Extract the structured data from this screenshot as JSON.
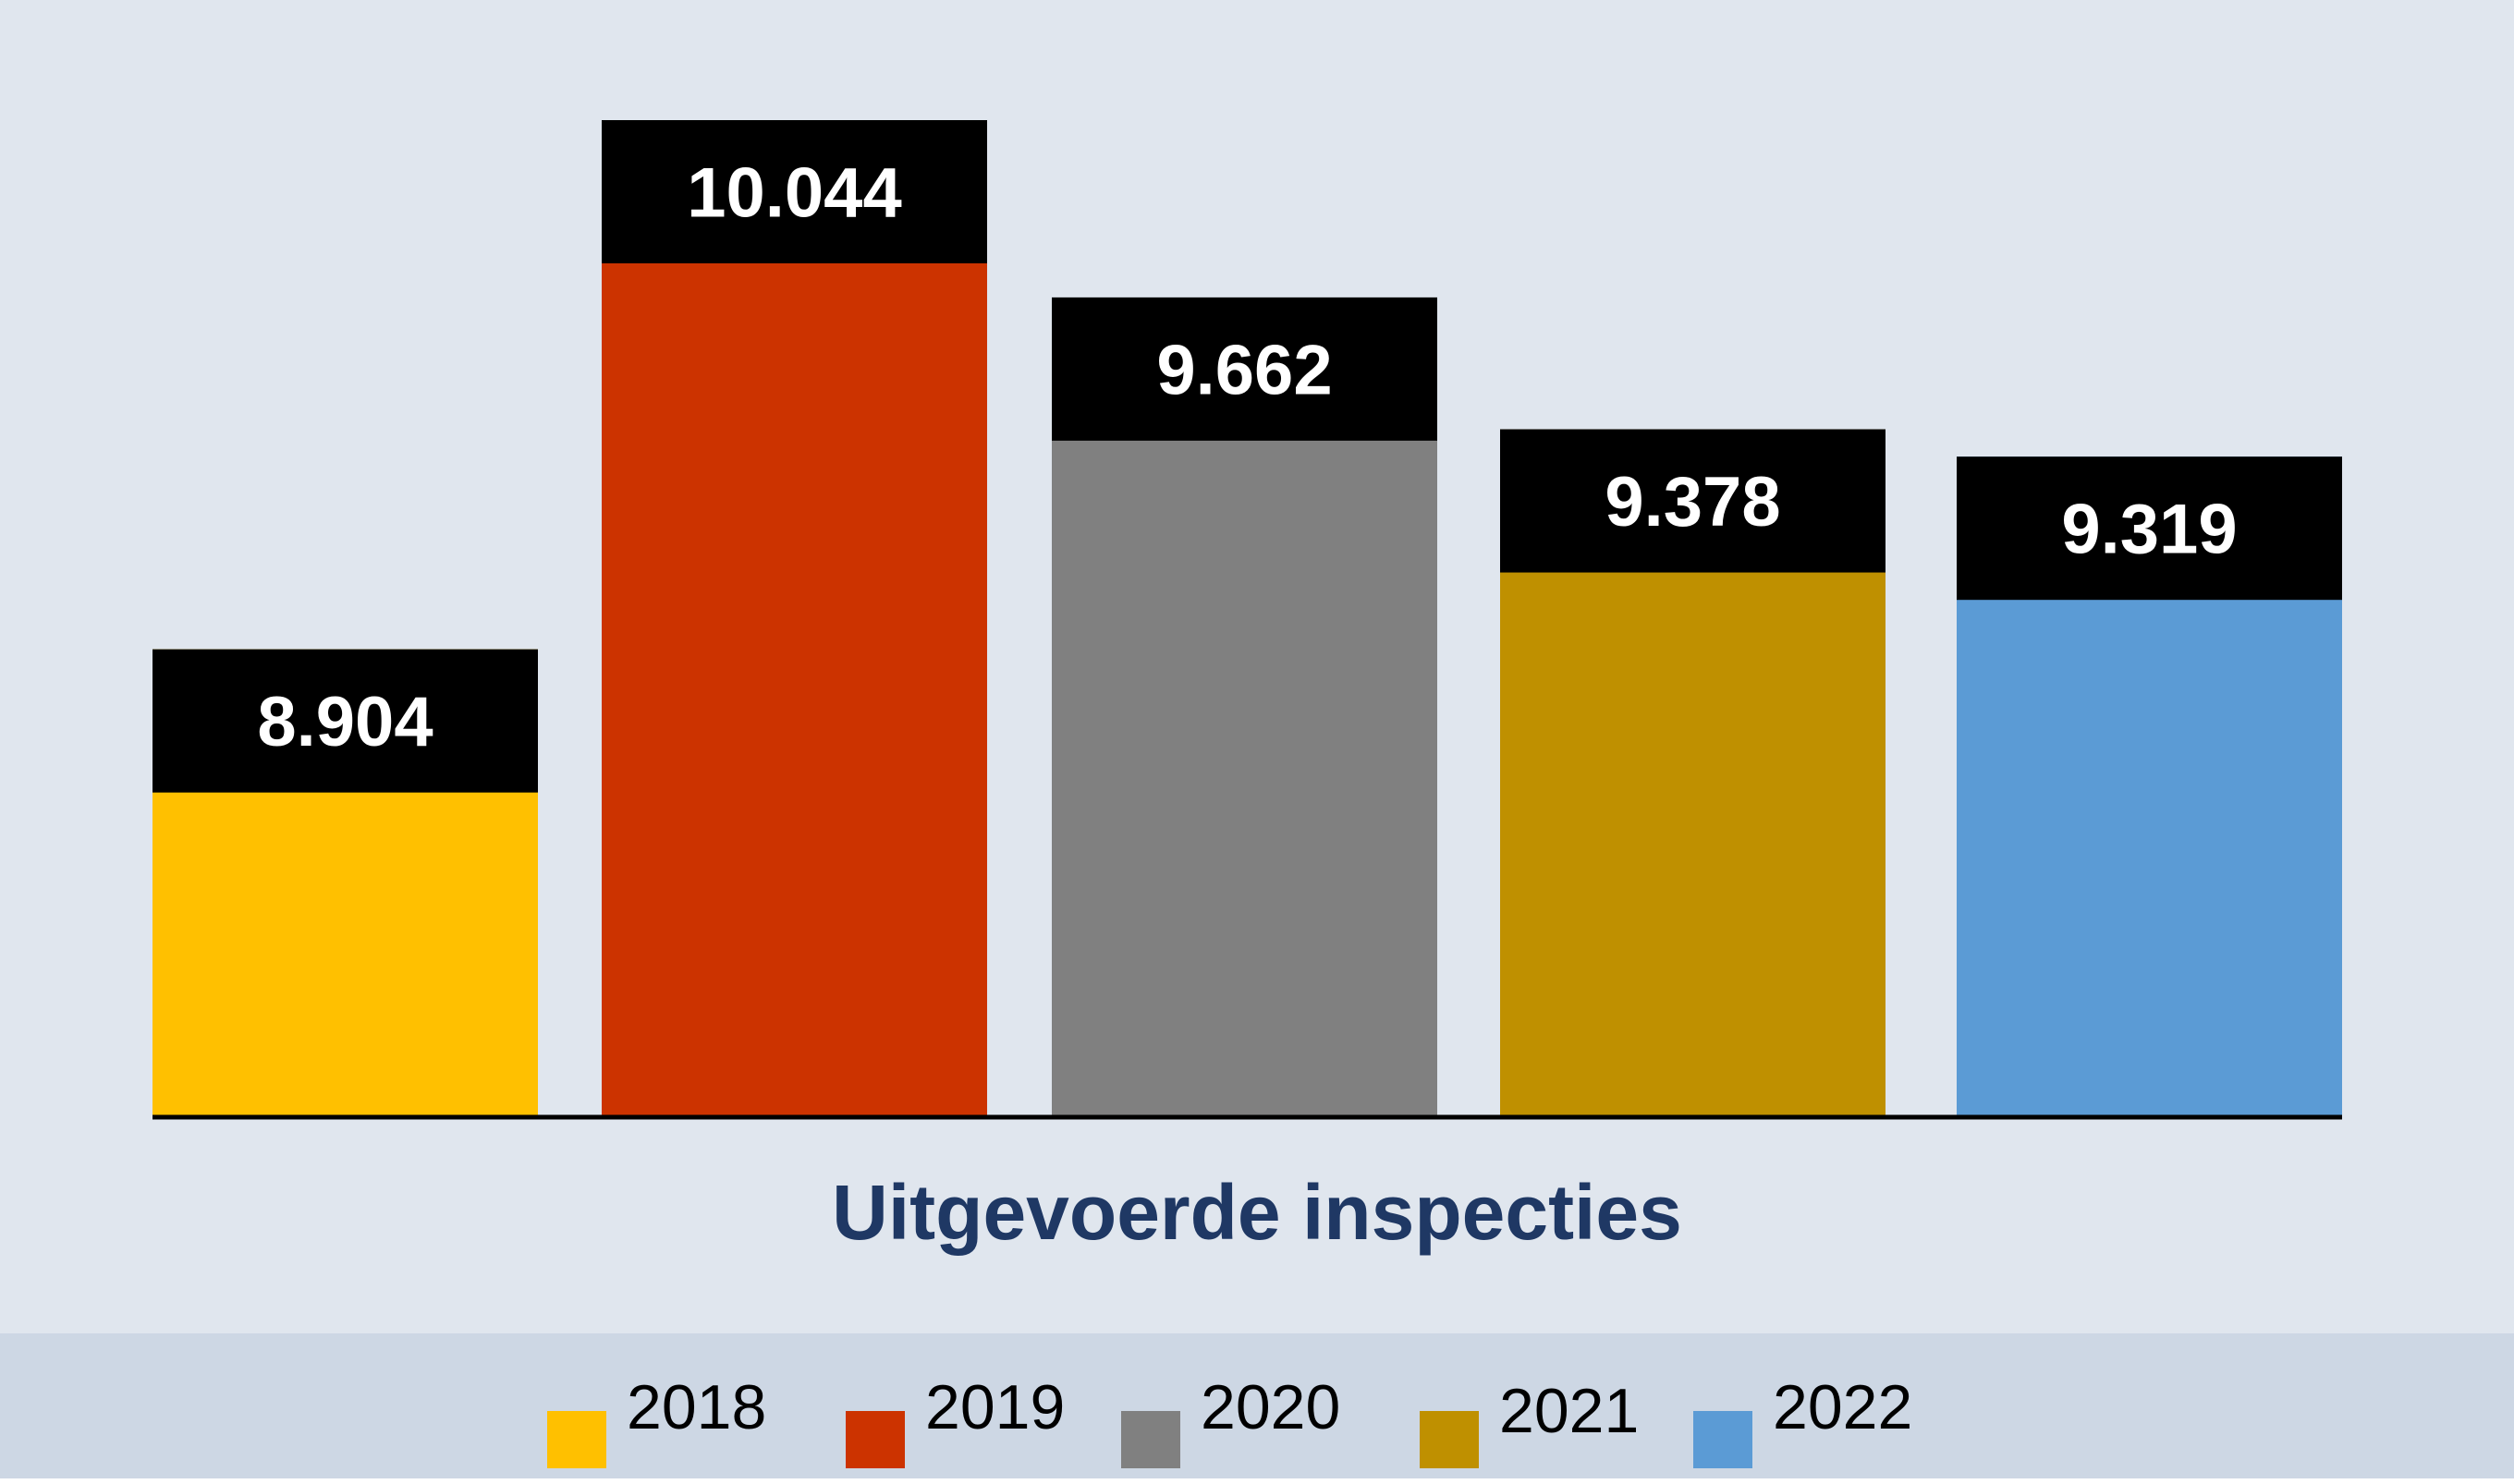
{
  "chart_data": {
    "type": "bar",
    "title": "Uitgevoerde inspecties",
    "categories": [
      "2018",
      "2019",
      "2020",
      "2021",
      "2022"
    ],
    "values": [
      8904,
      10044,
      9662,
      9378,
      9319
    ],
    "value_labels": [
      "8.904",
      "10.044",
      "9.662",
      "9.378",
      "9.319"
    ],
    "colors": [
      "#ffc000",
      "#cc3300",
      "#808080",
      "#bf9000",
      "#5b9bd5"
    ],
    "label_box_color": "#000000",
    "ylim": [
      7900,
      10500
    ],
    "grid": false,
    "legend": {
      "placement": "bottom",
      "entries": [
        "2018",
        "2019",
        "2020",
        "2021",
        "2022"
      ]
    }
  }
}
